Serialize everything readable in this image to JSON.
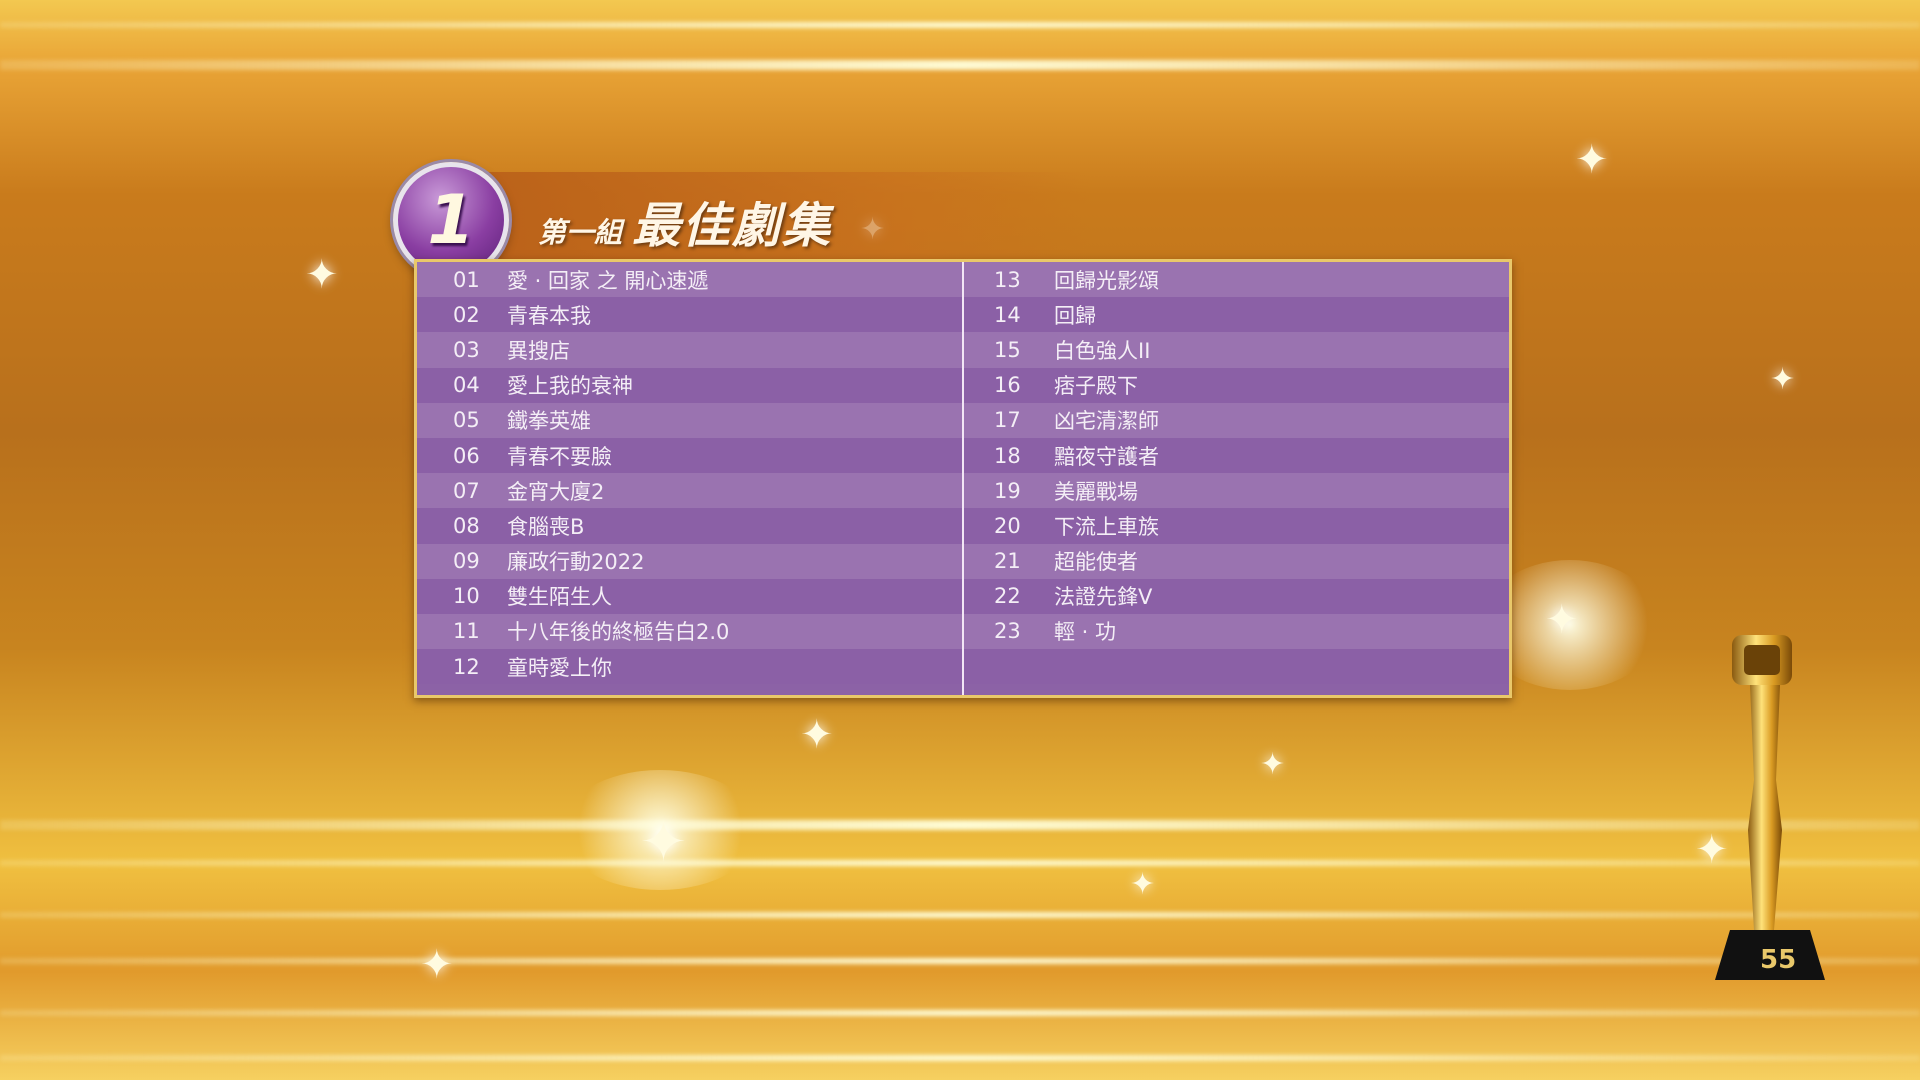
{
  "header": {
    "group_number": "1",
    "group_label": "第一組",
    "category_title": "最佳劇集"
  },
  "nominees_left": [
    {
      "num": "01",
      "name": "愛 · 回家 之 開心速遞"
    },
    {
      "num": "02",
      "name": "青春本我"
    },
    {
      "num": "03",
      "name": "異搜店"
    },
    {
      "num": "04",
      "name": "愛上我的衰神"
    },
    {
      "num": "05",
      "name": "鐵拳英雄"
    },
    {
      "num": "06",
      "name": "青春不要臉"
    },
    {
      "num": "07",
      "name": "金宵大廈2"
    },
    {
      "num": "08",
      "name": "食腦喪B"
    },
    {
      "num": "09",
      "name": "廉政行動2022"
    },
    {
      "num": "10",
      "name": "雙生陌生人"
    },
    {
      "num": "11",
      "name": "十八年後的終極告白2.0"
    },
    {
      "num": "12",
      "name": "童時愛上你"
    }
  ],
  "nominees_right": [
    {
      "num": "13",
      "name": "回歸光影頌"
    },
    {
      "num": "14",
      "name": "回歸"
    },
    {
      "num": "15",
      "name": "白色強人II"
    },
    {
      "num": "16",
      "name": "痞子殿下"
    },
    {
      "num": "17",
      "name": "凶宅清潔師"
    },
    {
      "num": "18",
      "name": "黯夜守護者"
    },
    {
      "num": "19",
      "name": "美麗戰場"
    },
    {
      "num": "20",
      "name": "下流上車族"
    },
    {
      "num": "21",
      "name": "超能使者"
    },
    {
      "num": "22",
      "name": "法證先鋒V"
    },
    {
      "num": "23",
      "name": "輕 · 功"
    },
    {
      "num": "",
      "name": ""
    }
  ],
  "trophy_logo": "55",
  "colors": {
    "row_light": "#9a73b0",
    "row_dark": "#8b60a6",
    "border_gold": "#e9c86a",
    "badge_purple": "#8a3ea2"
  }
}
